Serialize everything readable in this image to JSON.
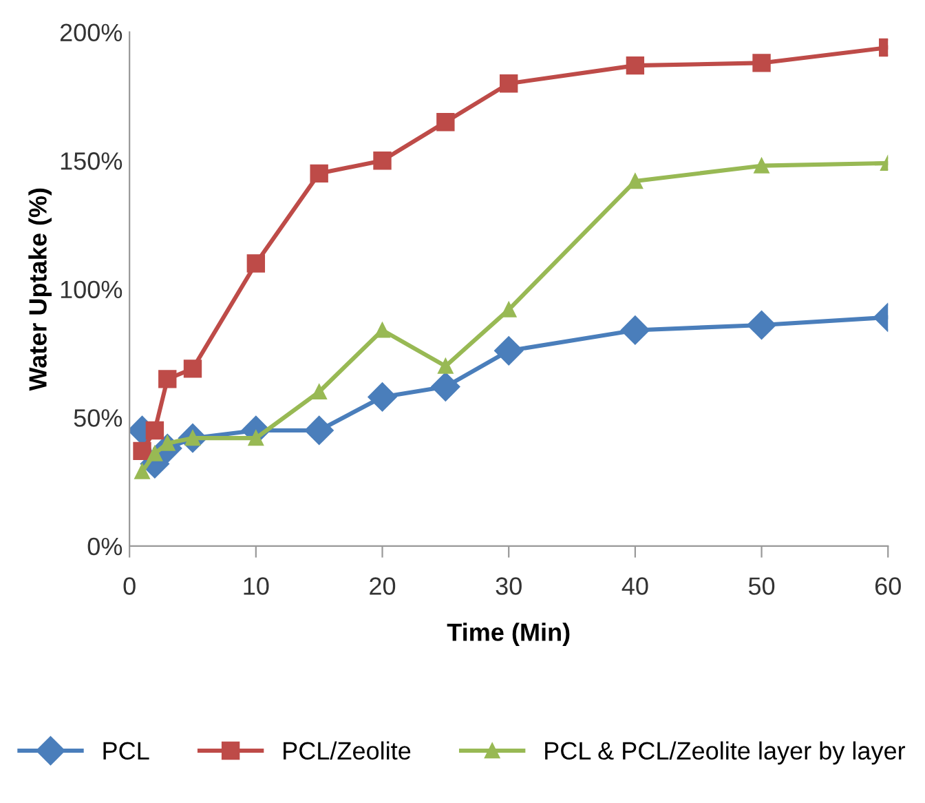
{
  "chart_data": {
    "type": "line",
    "xlabel": "Time (Min)",
    "ylabel": "Water Uptake (%)",
    "x": [
      1,
      2,
      3,
      5,
      10,
      15,
      20,
      25,
      30,
      40,
      50,
      60
    ],
    "series": [
      {
        "name": "PCL",
        "color": "#4a7ebb",
        "marker": "diamond",
        "values": [
          45,
          32,
          38,
          42,
          45,
          45,
          58,
          62,
          76,
          84,
          86,
          89
        ]
      },
      {
        "name": "PCL/Zeolite",
        "color": "#be4b48",
        "marker": "square",
        "values": [
          37,
          45,
          65,
          69,
          110,
          145,
          150,
          165,
          180,
          187,
          188,
          194
        ]
      },
      {
        "name": "PCL & PCL/Zeolite layer by layer",
        "color": "#98b954",
        "marker": "triangle",
        "values": [
          29,
          36,
          40,
          42,
          42,
          60,
          84,
          70,
          92,
          142,
          148,
          149
        ]
      }
    ],
    "xlim": [
      0,
      60
    ],
    "xticks": [
      0,
      10,
      20,
      30,
      40,
      50,
      60
    ],
    "ylim": [
      0,
      200
    ],
    "yticks": [
      {
        "value": 0,
        "label": "0%"
      },
      {
        "value": 50,
        "label": "50%"
      },
      {
        "value": 100,
        "label": "100%"
      },
      {
        "value": 150,
        "label": "150%"
      },
      {
        "value": 200,
        "label": "200%"
      }
    ],
    "grid": false,
    "legend": "bottom",
    "line_style": "solid"
  }
}
